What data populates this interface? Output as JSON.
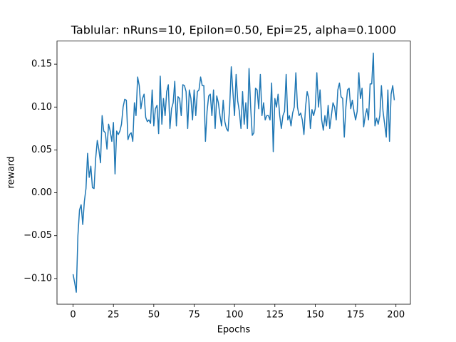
{
  "chart_data": {
    "type": "line",
    "title": "Tablular: nRuns=10, Epilon=0.50, Epi=25, alpha=0.1000",
    "x_label": "Epochs",
    "y_label": "reward",
    "x": [
      0,
      1,
      2,
      3,
      4,
      5,
      6,
      7,
      8,
      9,
      10,
      11,
      12,
      13,
      14,
      15,
      16,
      17,
      18,
      19,
      20,
      21,
      22,
      23,
      24,
      25,
      26,
      27,
      28,
      29,
      30,
      31,
      32,
      33,
      34,
      35,
      36,
      37,
      38,
      39,
      40,
      41,
      42,
      43,
      44,
      45,
      46,
      47,
      48,
      49,
      50,
      51,
      52,
      53,
      54,
      55,
      56,
      57,
      58,
      59,
      60,
      61,
      62,
      63,
      64,
      65,
      66,
      67,
      68,
      69,
      70,
      71,
      72,
      73,
      74,
      75,
      76,
      77,
      78,
      79,
      80,
      81,
      82,
      83,
      84,
      85,
      86,
      87,
      88,
      89,
      90,
      91,
      92,
      93,
      94,
      95,
      96,
      97,
      98,
      99,
      100,
      101,
      102,
      103,
      104,
      105,
      106,
      107,
      108,
      109,
      110,
      111,
      112,
      113,
      114,
      115,
      116,
      117,
      118,
      119,
      120,
      121,
      122,
      123,
      124,
      125,
      126,
      127,
      128,
      129,
      130,
      131,
      132,
      133,
      134,
      135,
      136,
      137,
      138,
      139,
      140,
      141,
      142,
      143,
      144,
      145,
      146,
      147,
      148,
      149,
      150,
      151,
      152,
      153,
      154,
      155,
      156,
      157,
      158,
      159,
      160,
      161,
      162,
      163,
      164,
      165,
      166,
      167,
      168,
      169,
      170,
      171,
      172,
      173,
      174,
      175,
      176,
      177,
      178,
      179,
      180,
      181,
      182,
      183,
      184,
      185,
      186,
      187,
      188,
      189,
      190,
      191,
      192,
      193,
      194,
      195,
      196,
      197,
      198,
      199
    ],
    "series": [
      {
        "color": "#1f77b4",
        "values": [
          -0.095,
          -0.105,
          -0.116,
          -0.05,
          -0.02,
          -0.014,
          -0.037,
          -0.01,
          0.005,
          0.046,
          0.018,
          0.031,
          0.006,
          0.005,
          0.04,
          0.061,
          0.05,
          0.035,
          0.09,
          0.072,
          0.07,
          0.051,
          0.08,
          0.072,
          0.06,
          0.082,
          0.022,
          0.072,
          0.068,
          0.072,
          0.08,
          0.1,
          0.109,
          0.108,
          0.062,
          0.068,
          0.07,
          0.06,
          0.105,
          0.09,
          0.135,
          0.125,
          0.098,
          0.11,
          0.115,
          0.088,
          0.083,
          0.085,
          0.081,
          0.12,
          0.078,
          0.098,
          0.102,
          0.069,
          0.136,
          0.08,
          0.11,
          0.09,
          0.118,
          0.126,
          0.075,
          0.098,
          0.105,
          0.13,
          0.078,
          0.112,
          0.11,
          0.09,
          0.126,
          0.125,
          0.118,
          0.075,
          0.12,
          0.11,
          0.085,
          0.12,
          0.09,
          0.118,
          0.12,
          0.135,
          0.125,
          0.125,
          0.06,
          0.095,
          0.113,
          0.115,
          0.09,
          0.12,
          0.075,
          0.113,
          0.105,
          0.09,
          0.078,
          0.108,
          0.083,
          0.075,
          0.072,
          0.1,
          0.147,
          0.118,
          0.09,
          0.138,
          0.107,
          0.095,
          0.075,
          0.118,
          0.08,
          0.105,
          0.075,
          0.145,
          0.1,
          0.067,
          0.07,
          0.122,
          0.12,
          0.098,
          0.138,
          0.09,
          0.105,
          0.085,
          0.09,
          0.09,
          0.085,
          0.128,
          0.048,
          0.11,
          0.1,
          0.115,
          0.09,
          0.075,
          0.09,
          0.095,
          0.138,
          0.085,
          0.09,
          0.078,
          0.093,
          0.1,
          0.14,
          0.1,
          0.09,
          0.093,
          0.085,
          0.068,
          0.1,
          0.118,
          0.11,
          0.075,
          0.097,
          0.09,
          0.098,
          0.14,
          0.1,
          0.12,
          0.085,
          0.073,
          0.09,
          0.078,
          0.102,
          0.075,
          0.09,
          0.105,
          0.1,
          0.085,
          0.12,
          0.128,
          0.112,
          0.11,
          0.065,
          0.1,
          0.12,
          0.122,
          0.098,
          0.108,
          0.095,
          0.085,
          0.095,
          0.14,
          0.11,
          0.122,
          0.077,
          0.09,
          0.098,
          0.085,
          0.127,
          0.127,
          0.163,
          0.078,
          0.087,
          0.08,
          0.09,
          0.125,
          0.095,
          0.08,
          0.065,
          0.12,
          0.06,
          0.115,
          0.125,
          0.108
        ]
      }
    ],
    "xlim": [
      -9.95,
      208.95
    ],
    "ylim": [
      -0.13,
      0.177
    ],
    "xticks": [
      0,
      25,
      50,
      75,
      100,
      125,
      150,
      175,
      200
    ],
    "yticks": [
      {
        "value": -0.1,
        "label": "−0.10"
      },
      {
        "value": -0.05,
        "label": "−0.05"
      },
      {
        "value": 0,
        "label": "0.00"
      },
      {
        "value": 0.05,
        "label": "0.05"
      },
      {
        "value": 0.1,
        "label": "0.10"
      },
      {
        "value": 0.15,
        "label": "0.15"
      }
    ]
  }
}
